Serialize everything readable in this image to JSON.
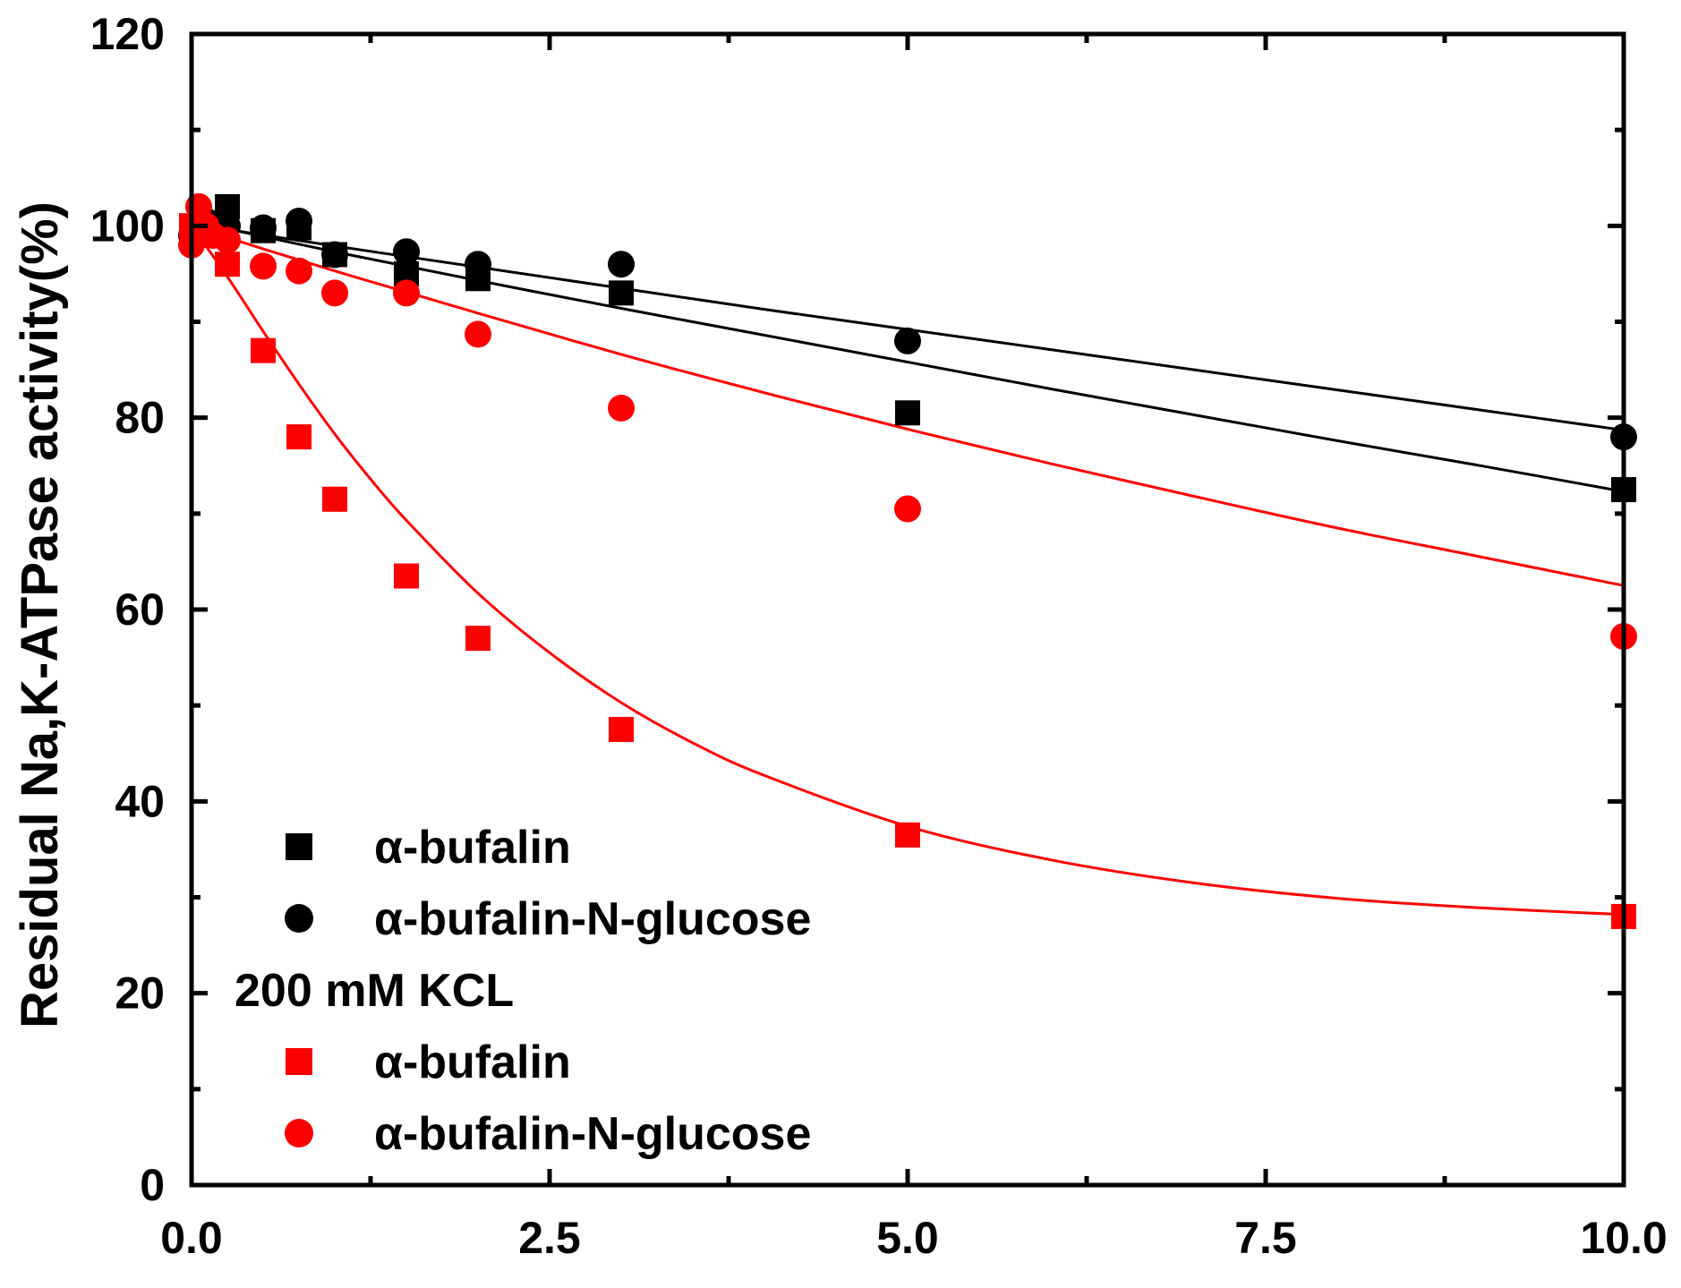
{
  "chart_data": {
    "type": "scatter",
    "title": "",
    "xlabel": "",
    "ylabel": "Residual Na,K-ATPase activity(%)",
    "xlim": [
      0,
      10
    ],
    "ylim": [
      0,
      120
    ],
    "x_ticks": [
      "0.0",
      "2.5",
      "5.0",
      "7.5",
      "10.0"
    ],
    "y_ticks": [
      "0",
      "20",
      "40",
      "60",
      "80",
      "100",
      "120"
    ],
    "grid": false,
    "legend_position": "bottom-left",
    "legend_heading": "200 mM KCL",
    "colors": {
      "black": "#000000",
      "red": "#ff0000"
    },
    "series": [
      {
        "name": "α-bufalin",
        "color": "#000000",
        "marker": "square",
        "legend_group": "top",
        "points": [
          [
            0,
            100
          ],
          [
            0.05,
            99.5
          ],
          [
            0.1,
            100.3
          ],
          [
            0.25,
            102
          ],
          [
            0.5,
            99.5
          ],
          [
            0.75,
            99.8
          ],
          [
            1,
            97
          ],
          [
            1.5,
            95
          ],
          [
            2,
            94.5
          ],
          [
            3,
            93
          ],
          [
            5,
            80.5
          ],
          [
            10,
            72.5
          ]
        ],
        "fit": [
          [
            0,
            100.5
          ],
          [
            1,
            97.3
          ],
          [
            2,
            94.3
          ],
          [
            3,
            91.4
          ],
          [
            4,
            88.6
          ],
          [
            5,
            85.8
          ],
          [
            6,
            83.0
          ],
          [
            7,
            80.3
          ],
          [
            8,
            77.6
          ],
          [
            9,
            75.0
          ],
          [
            10,
            72.3
          ]
        ]
      },
      {
        "name": "α-bufalin-N-glucose",
        "color": "#000000",
        "marker": "circle",
        "legend_group": "top",
        "points": [
          [
            0,
            99
          ],
          [
            0.05,
            100
          ],
          [
            0.1,
            100.5
          ],
          [
            0.25,
            100
          ],
          [
            0.5,
            99.8
          ],
          [
            0.75,
            100.5
          ],
          [
            1,
            97
          ],
          [
            1.5,
            97.3
          ],
          [
            2,
            96
          ],
          [
            3,
            96
          ],
          [
            5,
            88
          ],
          [
            10,
            78
          ]
        ],
        "fit": [
          [
            0,
            100.2
          ],
          [
            1,
            97.9
          ],
          [
            2,
            95.7
          ],
          [
            3,
            93.5
          ],
          [
            4,
            91.3
          ],
          [
            5,
            89.2
          ],
          [
            6,
            87.1
          ],
          [
            7,
            85.0
          ],
          [
            8,
            82.9
          ],
          [
            9,
            80.8
          ],
          [
            10,
            78.7
          ]
        ]
      },
      {
        "name": "α-bufalin",
        "color": "#ff0000",
        "marker": "square",
        "legend_group": "200 mM KCL",
        "points": [
          [
            0,
            100
          ],
          [
            0.05,
            99
          ],
          [
            0.1,
            99.5
          ],
          [
            0.25,
            96
          ],
          [
            0.5,
            87
          ],
          [
            0.75,
            78
          ],
          [
            1,
            71.5
          ],
          [
            1.5,
            63.5
          ],
          [
            2,
            57
          ],
          [
            3,
            47.5
          ],
          [
            5,
            36.5
          ],
          [
            10,
            28
          ]
        ],
        "fit": [
          [
            0,
            100
          ],
          [
            0.25,
            94.7
          ],
          [
            0.5,
            89.0
          ],
          [
            0.75,
            83.5
          ],
          [
            1,
            78.3
          ],
          [
            1.25,
            73.6
          ],
          [
            1.5,
            69.3
          ],
          [
            2,
            61.7
          ],
          [
            2.5,
            55.5
          ],
          [
            3,
            50.3
          ],
          [
            3.5,
            46.1
          ],
          [
            4,
            42.7
          ],
          [
            5,
            37.4
          ],
          [
            6,
            33.9
          ],
          [
            7,
            31.5
          ],
          [
            8,
            29.9
          ],
          [
            9,
            28.9
          ],
          [
            10,
            28.2
          ]
        ]
      },
      {
        "name": "α-bufalin-N-glucose",
        "color": "#ff0000",
        "marker": "circle",
        "legend_group": "200 mM KCL",
        "points": [
          [
            0,
            98
          ],
          [
            0.05,
            102
          ],
          [
            0.1,
            100
          ],
          [
            0.15,
            99
          ],
          [
            0.25,
            98.5
          ],
          [
            0.5,
            95.8
          ],
          [
            0.75,
            95.3
          ],
          [
            1,
            93
          ],
          [
            1.5,
            93
          ],
          [
            2,
            88.7
          ],
          [
            3,
            81
          ],
          [
            5,
            70.5
          ],
          [
            10,
            57.2
          ]
        ],
        "fit": [
          [
            0,
            100
          ],
          [
            0.5,
            97.6
          ],
          [
            1,
            95.3
          ],
          [
            1.5,
            93.1
          ],
          [
            2,
            90.9
          ],
          [
            3,
            86.6
          ],
          [
            4,
            82.6
          ],
          [
            5,
            78.8
          ],
          [
            6,
            75.2
          ],
          [
            7,
            71.8
          ],
          [
            8,
            68.5
          ],
          [
            9,
            65.5
          ],
          [
            10,
            62.5
          ]
        ]
      }
    ]
  }
}
